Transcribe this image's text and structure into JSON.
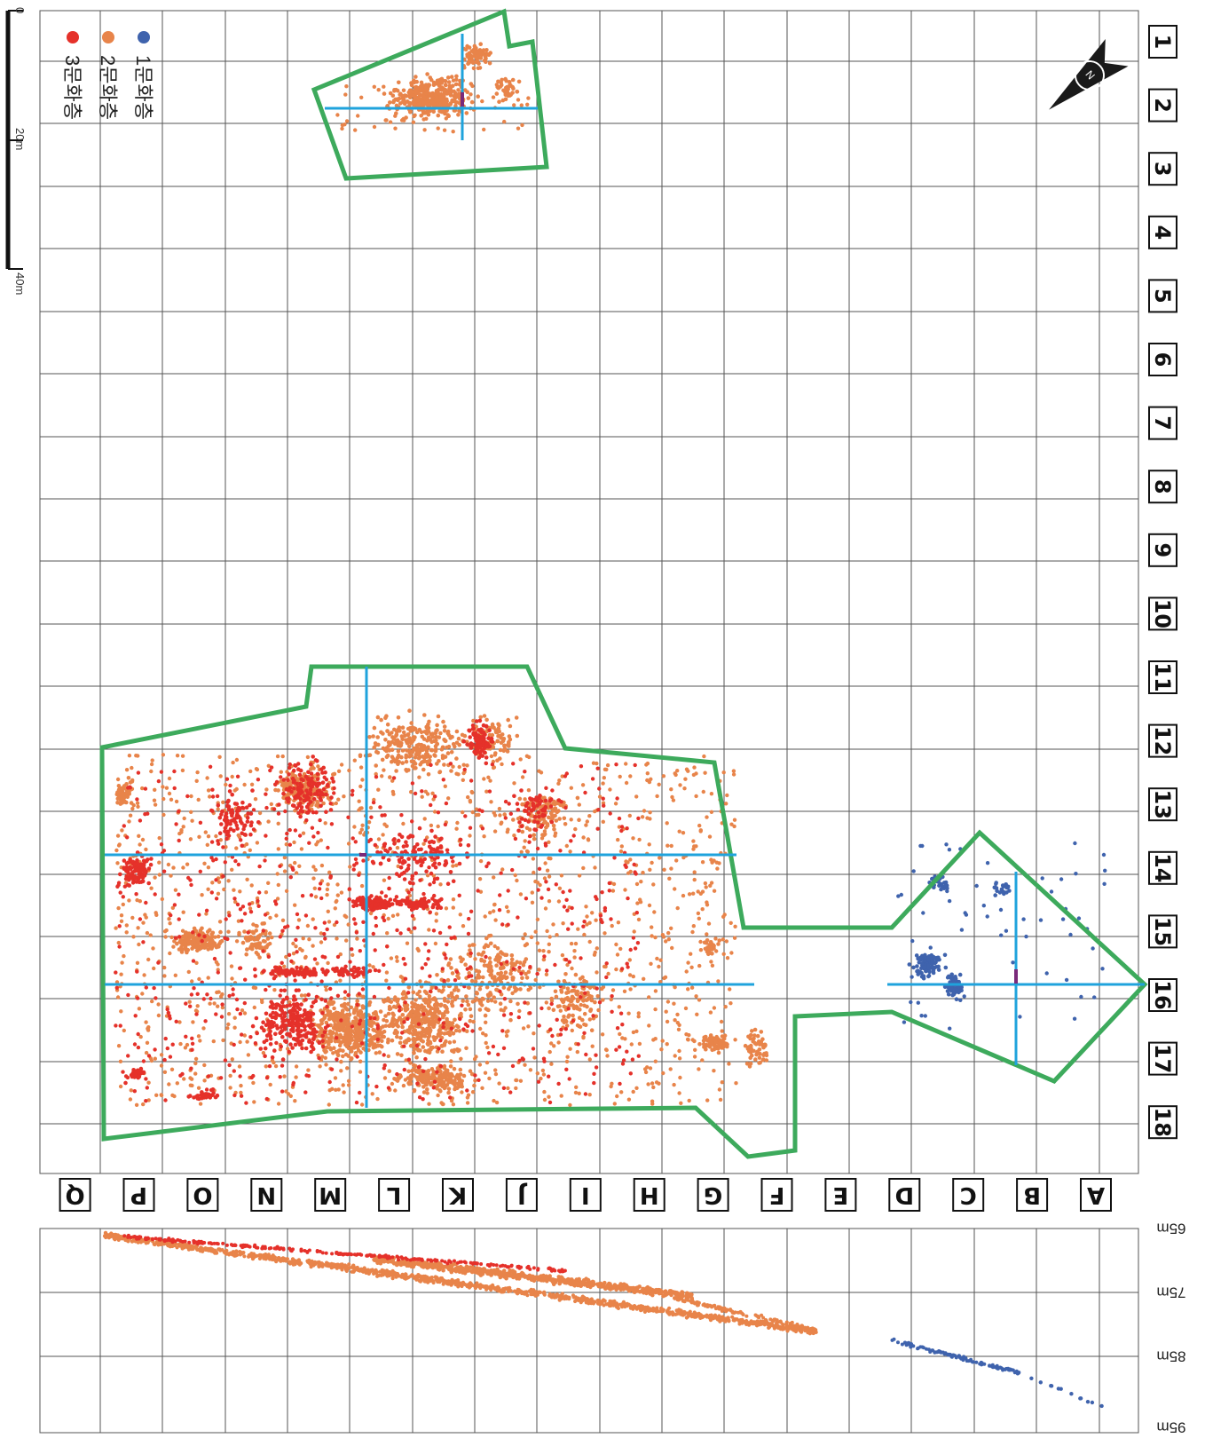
{
  "columns": [
    "A",
    "B",
    "C",
    "D",
    "E",
    "F",
    "G",
    "H",
    "I",
    "J",
    "K",
    "L",
    "M",
    "N",
    "O",
    "P",
    "Q"
  ],
  "rows": [
    "1",
    "2",
    "3",
    "4",
    "5",
    "6",
    "7",
    "8",
    "9",
    "10",
    "11",
    "12",
    "13",
    "14",
    "15",
    "16",
    "17",
    "18"
  ],
  "legend": [
    {
      "label": "1문화층",
      "color": "#3f63ad"
    },
    {
      "label": "2문화층",
      "color": "#e8844a"
    },
    {
      "label": "3문화층",
      "color": "#e5312a"
    }
  ],
  "scale_bar": {
    "ticks": [
      "0",
      "20m",
      "40m"
    ]
  },
  "north_arrow": {
    "label": "N"
  },
  "section": {
    "elevation_labels": [
      "65m",
      "75m",
      "85m",
      "95m"
    ]
  },
  "colors": {
    "grid": "#555555",
    "boundary": "#3daa5c",
    "baseline": "#1fa3dc",
    "datum": "#7a2a7a",
    "layer1": "#3f63ad",
    "layer2": "#e8844a",
    "layer3": "#e5312a"
  }
}
